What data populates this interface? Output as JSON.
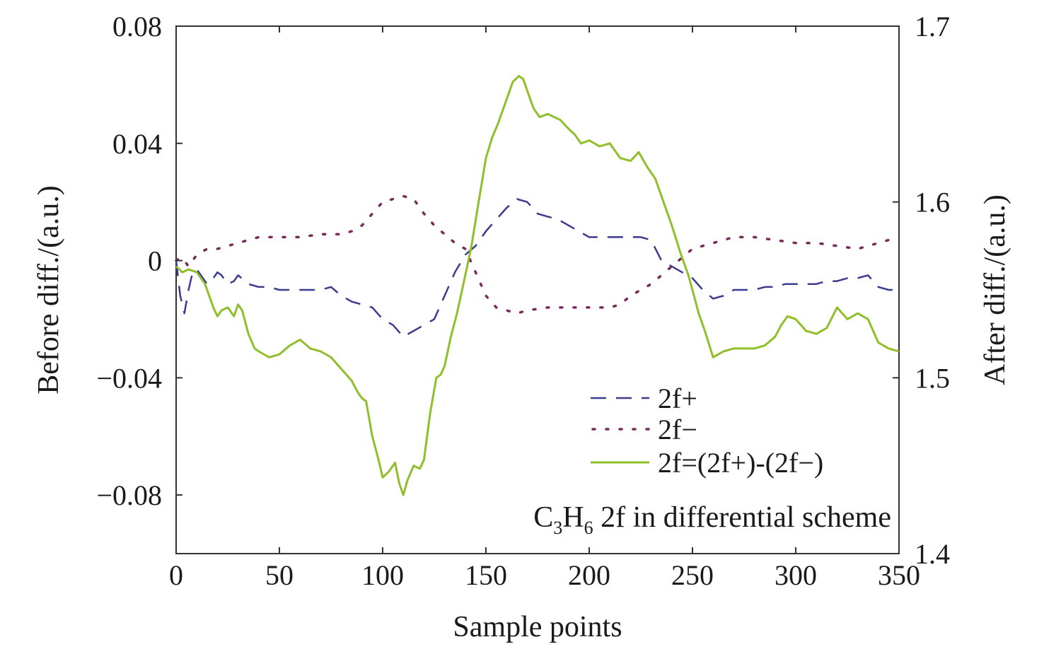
{
  "chart_data": {
    "type": "line",
    "title": "",
    "xlabel": "Sample points",
    "ylabel_left": "Before diff./(a.u.)",
    "ylabel_right": "After diff./(a.u.)",
    "xlim": [
      0,
      350
    ],
    "ylim_left": [
      -0.1,
      0.08
    ],
    "ylim_right": [
      1.4,
      1.7
    ],
    "x_ticks": [
      0,
      50,
      100,
      150,
      200,
      250,
      300,
      350
    ],
    "x_tick_labels": [
      "0",
      "50",
      "100",
      "150",
      "200",
      "250",
      "300",
      "350"
    ],
    "y_left_ticks": [
      -0.08,
      -0.04,
      0,
      0.04,
      0.08
    ],
    "y_left_tick_labels": [
      "−0.08",
      "−0.04",
      "0",
      "0.04",
      "0.08"
    ],
    "y_right_ticks": [
      1.4,
      1.5,
      1.6,
      1.7
    ],
    "y_right_tick_labels": [
      "1.4",
      "1.5",
      "1.6",
      "1.7"
    ],
    "grid": false,
    "legend_position": "bottom-right",
    "annotation": {
      "prefix": "C",
      "sub1": "3",
      "mid": "H",
      "sub2": "6",
      "suffix": " 2f in differential scheme"
    },
    "series": [
      {
        "name": "2f+",
        "axis": "left",
        "style": "dashed",
        "color": "#3b3b8f",
        "x": [
          0,
          2,
          4,
          6,
          8,
          10,
          12,
          15,
          18,
          20,
          22,
          25,
          28,
          30,
          35,
          40,
          45,
          50,
          55,
          60,
          65,
          70,
          75,
          80,
          85,
          90,
          95,
          100,
          105,
          110,
          115,
          120,
          125,
          130,
          135,
          140,
          145,
          150,
          155,
          160,
          165,
          170,
          175,
          180,
          185,
          190,
          195,
          200,
          205,
          210,
          215,
          220,
          225,
          230,
          235,
          240,
          245,
          250,
          255,
          260,
          265,
          270,
          275,
          280,
          285,
          290,
          295,
          300,
          305,
          310,
          315,
          320,
          325,
          330,
          335,
          340,
          345,
          350
        ],
        "y": [
          0.0,
          -0.012,
          -0.018,
          -0.01,
          -0.004,
          -0.003,
          -0.005,
          -0.008,
          -0.006,
          -0.004,
          -0.005,
          -0.008,
          -0.007,
          -0.005,
          -0.008,
          -0.009,
          -0.009,
          -0.01,
          -0.01,
          -0.01,
          -0.01,
          -0.01,
          -0.009,
          -0.012,
          -0.014,
          -0.015,
          -0.016,
          -0.02,
          -0.022,
          -0.026,
          -0.024,
          -0.022,
          -0.02,
          -0.012,
          -0.004,
          0.002,
          0.005,
          0.01,
          0.014,
          0.018,
          0.021,
          0.02,
          0.016,
          0.015,
          0.014,
          0.012,
          0.01,
          0.008,
          0.008,
          0.008,
          0.008,
          0.008,
          0.008,
          0.007,
          0.0,
          -0.002,
          -0.004,
          -0.006,
          -0.01,
          -0.013,
          -0.012,
          -0.01,
          -0.01,
          -0.01,
          -0.009,
          -0.009,
          -0.008,
          -0.008,
          -0.008,
          -0.008,
          -0.007,
          -0.007,
          -0.006,
          -0.006,
          -0.005,
          -0.009,
          -0.01,
          -0.01
        ]
      },
      {
        "name": "2f−",
        "axis": "left",
        "style": "dotted",
        "color": "#7a2a5c",
        "x": [
          0,
          2,
          4,
          6,
          8,
          10,
          15,
          20,
          25,
          30,
          35,
          40,
          50,
          60,
          70,
          80,
          85,
          90,
          95,
          100,
          105,
          110,
          115,
          120,
          125,
          130,
          135,
          140,
          145,
          150,
          155,
          160,
          165,
          170,
          180,
          190,
          200,
          210,
          215,
          220,
          225,
          230,
          235,
          240,
          245,
          250,
          255,
          260,
          270,
          280,
          290,
          300,
          310,
          320,
          330,
          340,
          345
        ],
        "y": [
          0.0,
          0.001,
          0.0,
          -0.002,
          0.0,
          0.002,
          0.004,
          0.004,
          0.005,
          0.006,
          0.007,
          0.008,
          0.008,
          0.008,
          0.009,
          0.009,
          0.01,
          0.012,
          0.016,
          0.02,
          0.021,
          0.022,
          0.021,
          0.016,
          0.012,
          0.009,
          0.006,
          0.004,
          -0.004,
          -0.012,
          -0.016,
          -0.017,
          -0.018,
          -0.017,
          -0.016,
          -0.016,
          -0.016,
          -0.016,
          -0.015,
          -0.012,
          -0.01,
          -0.008,
          -0.005,
          -0.002,
          0.001,
          0.004,
          0.005,
          0.006,
          0.008,
          0.008,
          0.007,
          0.006,
          0.006,
          0.005,
          0.004,
          0.006,
          0.007
        ]
      },
      {
        "name": "2f=(2f+)-(2f−)",
        "axis": "left",
        "style": "solid",
        "color": "#8fbf2a",
        "x": [
          0,
          3,
          6,
          10,
          14,
          16,
          18,
          20,
          22,
          25,
          28,
          30,
          32,
          35,
          38,
          40,
          45,
          50,
          55,
          60,
          65,
          70,
          75,
          80,
          85,
          88,
          90,
          92,
          95,
          98,
          100,
          103,
          106,
          108,
          110,
          112,
          115,
          118,
          120,
          123,
          126,
          128,
          130,
          133,
          136,
          140,
          143,
          146,
          150,
          153,
          156,
          160,
          163,
          166,
          168,
          170,
          173,
          176,
          180,
          183,
          186,
          190,
          193,
          196,
          200,
          205,
          210,
          215,
          220,
          224,
          228,
          232,
          236,
          240,
          244,
          248,
          250,
          253,
          256,
          260,
          265,
          270,
          275,
          280,
          285,
          290,
          293,
          296,
          300,
          305,
          310,
          315,
          320,
          325,
          330,
          335,
          340,
          345,
          350
        ],
        "y": [
          -0.002,
          -0.004,
          -0.003,
          -0.004,
          -0.008,
          -0.012,
          -0.016,
          -0.019,
          -0.017,
          -0.016,
          -0.019,
          -0.015,
          -0.017,
          -0.025,
          -0.03,
          -0.031,
          -0.033,
          -0.032,
          -0.029,
          -0.027,
          -0.03,
          -0.031,
          -0.033,
          -0.037,
          -0.041,
          -0.045,
          -0.047,
          -0.048,
          -0.06,
          -0.068,
          -0.074,
          -0.072,
          -0.069,
          -0.076,
          -0.08,
          -0.075,
          -0.07,
          -0.071,
          -0.068,
          -0.052,
          -0.04,
          -0.039,
          -0.036,
          -0.026,
          -0.018,
          -0.005,
          0.005,
          0.018,
          0.035,
          0.042,
          0.047,
          0.055,
          0.061,
          0.063,
          0.062,
          0.058,
          0.052,
          0.049,
          0.05,
          0.049,
          0.048,
          0.045,
          0.043,
          0.04,
          0.041,
          0.039,
          0.04,
          0.035,
          0.034,
          0.037,
          0.032,
          0.028,
          0.02,
          0.012,
          0.003,
          -0.005,
          -0.01,
          -0.018,
          -0.024,
          -0.033,
          -0.031,
          -0.03,
          -0.03,
          -0.03,
          -0.029,
          -0.026,
          -0.022,
          -0.019,
          -0.02,
          -0.024,
          -0.025,
          -0.023,
          -0.016,
          -0.02,
          -0.018,
          -0.02,
          -0.028,
          -0.03,
          -0.031
        ]
      }
    ]
  }
}
